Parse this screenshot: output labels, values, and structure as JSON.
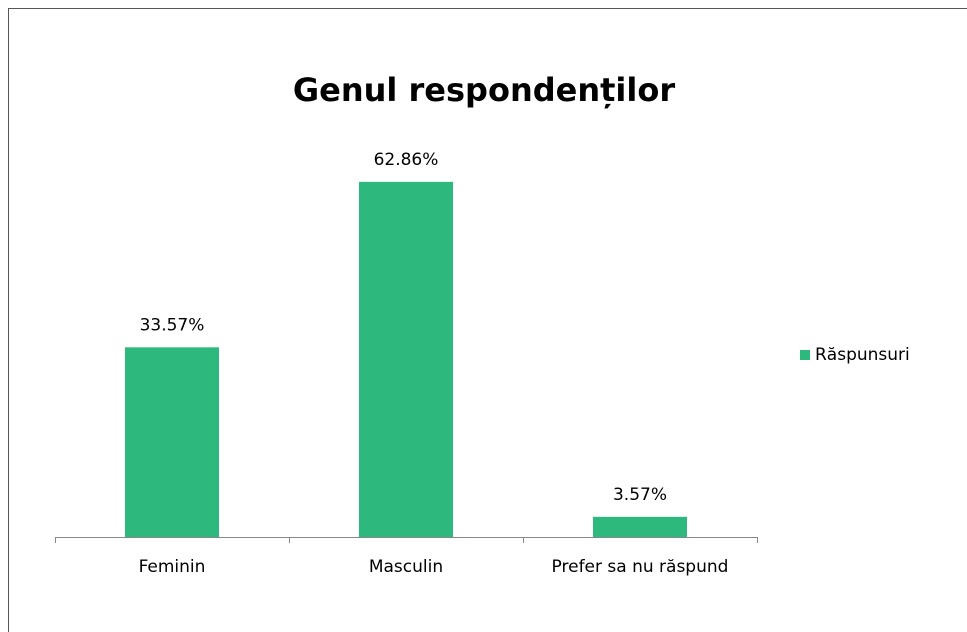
{
  "chart_data": {
    "type": "bar",
    "title": "Genul respondenților",
    "categories": [
      "Feminin",
      "Masculin",
      "Prefer sa nu răspund"
    ],
    "series": [
      {
        "name": "Răspunsuri",
        "color": "#2db87d",
        "values": [
          33.57,
          62.86,
          3.57
        ],
        "value_labels": [
          "33.57%",
          "62.86%",
          "3.57%"
        ]
      }
    ],
    "legend": "right"
  }
}
